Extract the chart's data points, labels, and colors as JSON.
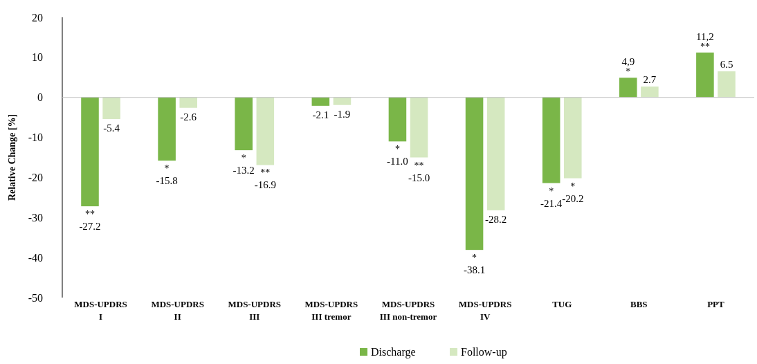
{
  "chart_data": {
    "type": "bar",
    "ylabel": "Relative Change [%]",
    "categories": [
      "MDS-UPDRS I",
      "MDS-UPDRS II",
      "MDS-UPDRS III",
      "MDS-UPDRS III tremor",
      "MDS-UPDRS III non-tremor",
      "MDS-UPDRS IV",
      "TUG",
      "BBS",
      "PPT"
    ],
    "series": [
      {
        "name": "Discharge",
        "color": "#7ab648",
        "values": [
          -27.2,
          -15.8,
          -13.2,
          -2.1,
          -11.0,
          -38.1,
          -21.4,
          4.9,
          11.2
        ],
        "value_labels": [
          "-27.2",
          "-15.8",
          "-13.2",
          "-2.1",
          "-11.0",
          "-38.1",
          "-21.4",
          "4,9",
          "11,2"
        ]
      },
      {
        "name": "Follow-up",
        "color": "#d5e8c0",
        "values": [
          -5.4,
          -2.6,
          -16.9,
          -1.9,
          -15.0,
          -28.2,
          -20.2,
          2.7,
          6.5
        ],
        "value_labels": [
          "-5.4",
          "-2.6",
          "-16.9",
          "-1.9",
          "-15.0",
          "-28.2",
          "-20.2",
          "2.7",
          "6.5"
        ]
      }
    ],
    "ylim": [
      -50,
      20
    ],
    "yticks": [
      -50,
      -40,
      -30,
      -20,
      -10,
      0,
      10,
      20
    ],
    "legend": "bottom",
    "annotations": [
      {
        "text": "**",
        "x": "MDS-UPDRS I",
        "y": -27.2
      },
      {
        "text": "*",
        "x": "MDS-UPDRS II",
        "y": -15.8
      },
      {
        "text": "*",
        "x": "MDS-UPDRS III",
        "y": -13.2
      },
      {
        "text": "**",
        "x": "MDS-UPDRS III",
        "y": -16.9
      },
      {
        "text": "*",
        "x": "MDS-UPDRS III non-tremor",
        "y": -11.0
      },
      {
        "text": "**",
        "x": "MDS-UPDRS III non-tremor",
        "y": -15.0
      },
      {
        "text": "*",
        "x": "MDS-UPDRS IV",
        "y": -38.1
      },
      {
        "text": "*",
        "x": "TUG",
        "y": -21.4
      },
      {
        "text": "*",
        "x": "TUG",
        "y": -20.2
      },
      {
        "text": "*",
        "x": "BBS",
        "y": 4.9
      },
      {
        "text": "**",
        "x": "PPT",
        "y": 11.2
      }
    ]
  }
}
